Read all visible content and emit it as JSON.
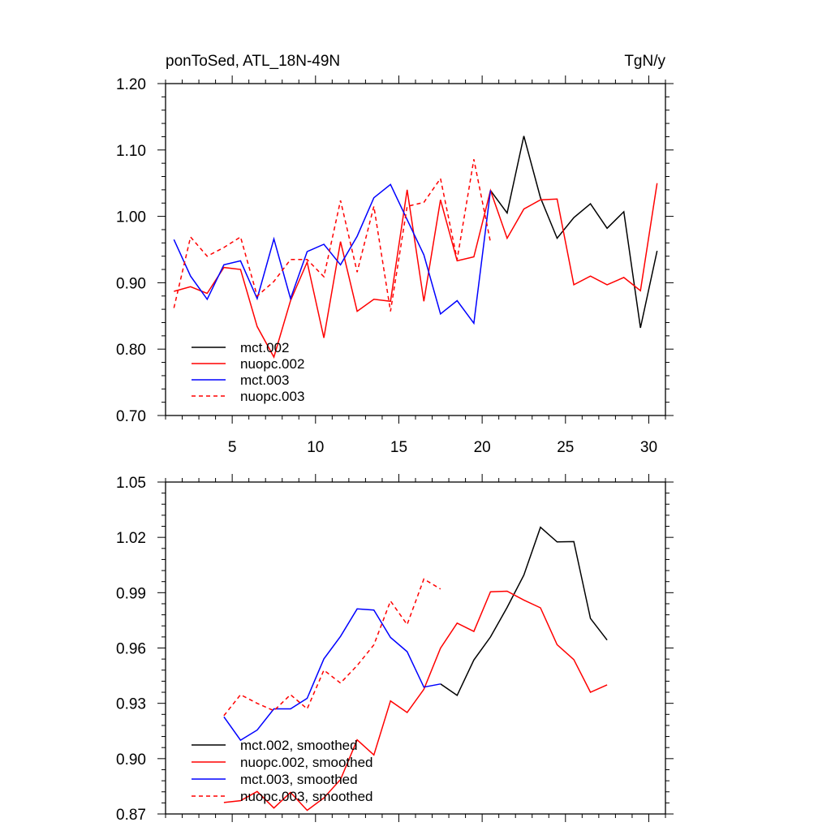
{
  "chart_data": [
    {
      "type": "line",
      "title": "ponToSed, ATL_18N-49N",
      "units": "TgN/y",
      "xlim": [
        1,
        31
      ],
      "ylim": [
        0.7,
        1.2
      ],
      "x_ticks": [
        5,
        10,
        15,
        20,
        25,
        30
      ],
      "y_ticks": [
        0.7,
        0.8,
        0.9,
        1.0,
        1.1,
        1.2
      ],
      "y_tick_labels": [
        "0.70",
        "0.80",
        "0.90",
        "1.00",
        "1.10",
        "1.20"
      ],
      "legend_location": "bottom-left",
      "series": [
        {
          "name": "mct.002",
          "color": "#000000",
          "dash": "solid",
          "x": [
            20.5,
            21.5,
            22.5,
            23.5,
            24.5,
            25.5,
            26.5,
            27.5,
            28.5,
            29.5,
            30.5
          ],
          "y": [
            1.039,
            1.005,
            1.121,
            1.028,
            0.967,
            0.998,
            1.019,
            0.982,
            1.007,
            0.832,
            0.948
          ]
        },
        {
          "name": "nuopc.002",
          "color": "#ff0000",
          "dash": "solid",
          "x": [
            1.5,
            2.5,
            3.5,
            4.5,
            5.5,
            6.5,
            7.5,
            8.5,
            9.5,
            10.5,
            11.5,
            12.5,
            13.5,
            14.5,
            15.5,
            16.5,
            17.5,
            18.5,
            19.5,
            20.5,
            21.5,
            22.5,
            23.5,
            24.5,
            25.5,
            26.5,
            27.5,
            28.5,
            29.5,
            30.5
          ],
          "y": [
            0.887,
            0.894,
            0.884,
            0.923,
            0.92,
            0.834,
            0.788,
            0.873,
            0.931,
            0.817,
            0.962,
            0.857,
            0.875,
            0.872,
            1.04,
            0.872,
            1.025,
            0.933,
            0.939,
            1.039,
            0.967,
            1.011,
            1.025,
            1.026,
            0.897,
            0.91,
            0.897,
            0.908,
            0.888,
            1.05
          ]
        },
        {
          "name": "mct.003",
          "color": "#0000ff",
          "dash": "solid",
          "x": [
            1.5,
            2.5,
            3.5,
            4.5,
            5.5,
            6.5,
            7.5,
            8.5,
            9.5,
            10.5,
            11.5,
            12.5,
            13.5,
            14.5,
            15.5,
            16.5,
            17.5,
            18.5,
            19.5,
            20.5
          ],
          "y": [
            0.965,
            0.91,
            0.875,
            0.927,
            0.933,
            0.876,
            0.966,
            0.876,
            0.947,
            0.958,
            0.927,
            0.97,
            1.028,
            1.048,
            0.995,
            0.942,
            0.853,
            0.873,
            0.839,
            1.039
          ]
        },
        {
          "name": "nuopc.003",
          "color": "#ff0000",
          "dash": "dashed",
          "x": [
            1.5,
            2.5,
            3.5,
            4.5,
            5.5,
            6.5,
            7.5,
            8.5,
            9.5,
            10.5,
            11.5,
            12.5,
            13.5,
            14.5,
            15.5,
            16.5,
            17.5,
            18.5,
            19.5,
            20.5
          ],
          "y": [
            0.862,
            0.969,
            0.94,
            0.953,
            0.969,
            0.88,
            0.902,
            0.935,
            0.935,
            0.909,
            1.024,
            0.916,
            1.015,
            0.857,
            1.015,
            1.021,
            1.057,
            0.935,
            1.086,
            0.961
          ]
        }
      ]
    },
    {
      "type": "line",
      "title": "",
      "xlim": [
        1,
        31
      ],
      "ylim": [
        0.87,
        1.05
      ],
      "x_ticks": [
        5,
        10,
        15,
        20,
        25,
        30
      ],
      "y_ticks": [
        0.87,
        0.9,
        0.93,
        0.96,
        0.99,
        1.02,
        1.05
      ],
      "y_tick_labels": [
        "0.87",
        "0.90",
        "0.93",
        "0.96",
        "0.99",
        "1.02",
        "1.05"
      ],
      "legend_location": "bottom-left",
      "series": [
        {
          "name": "mct.002, smoothed",
          "color": "#000000",
          "dash": "solid",
          "x": [
            17.5,
            18.5,
            19.5,
            20.5,
            21.5,
            22.5,
            23.5,
            24.5,
            25.5,
            26.5,
            27.5
          ],
          "y": [
            0.9405,
            0.9343,
            0.9535,
            0.966,
            0.982,
            0.9995,
            1.0255,
            1.0175,
            1.0177,
            0.976,
            0.9643
          ]
        },
        {
          "name": "nuopc.002, smoothed",
          "color": "#ff0000",
          "dash": "solid",
          "x": [
            4.5,
            5.5,
            6.5,
            7.5,
            8.5,
            9.5,
            10.5,
            11.5,
            12.5,
            13.5,
            14.5,
            15.5,
            16.5,
            17.5,
            18.5,
            19.5,
            20.5,
            21.5,
            22.5,
            23.5,
            24.5,
            25.5,
            26.5,
            27.5
          ],
          "y": [
            0.8762,
            0.8772,
            0.8822,
            0.8732,
            0.8817,
            0.872,
            0.8787,
            0.8887,
            0.9102,
            0.902,
            0.9313,
            0.925,
            0.9376,
            0.9599,
            0.9735,
            0.969,
            0.9905,
            0.9908,
            0.986,
            0.9818,
            0.9618,
            0.9537,
            0.936,
            0.94
          ]
        },
        {
          "name": "mct.003, smoothed",
          "color": "#0000ff",
          "dash": "solid",
          "x": [
            4.5,
            5.5,
            6.5,
            7.5,
            8.5,
            9.5,
            10.5,
            11.5,
            12.5,
            13.5,
            14.5,
            15.5,
            16.5,
            17.5
          ],
          "y": [
            0.9227,
            0.91,
            0.9155,
            0.927,
            0.927,
            0.9327,
            0.9541,
            0.9663,
            0.9812,
            0.9806,
            0.9657,
            0.958,
            0.9388,
            0.9405
          ]
        },
        {
          "name": "nuopc.003, smoothed",
          "color": "#ff0000",
          "dash": "dashed",
          "x": [
            4.5,
            5.5,
            6.5,
            7.5,
            8.5,
            9.5,
            10.5,
            11.5,
            12.5,
            13.5,
            14.5,
            15.5,
            16.5,
            17.5
          ],
          "y": [
            0.9233,
            0.9347,
            0.93,
            0.926,
            0.9347,
            0.927,
            0.948,
            0.941,
            0.9505,
            0.9617,
            0.9855,
            0.9727,
            0.9974,
            0.992
          ]
        }
      ]
    }
  ]
}
